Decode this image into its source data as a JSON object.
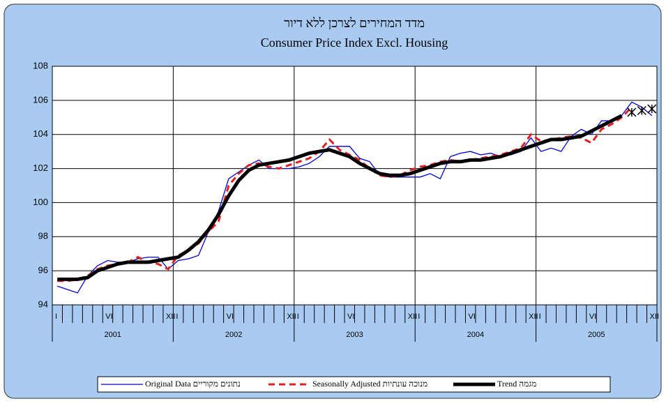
{
  "chart_data": {
    "type": "line",
    "title": "מדד המחירים לצרכן ללא דיור",
    "subtitle": "Consumer Price Index Excl. Housing",
    "categories": [
      "I",
      null,
      null,
      null,
      null,
      "VI",
      null,
      null,
      null,
      null,
      null,
      "XII",
      "I",
      null,
      null,
      null,
      null,
      "VI",
      null,
      null,
      null,
      null,
      null,
      "XII",
      "I",
      null,
      null,
      null,
      null,
      "VI",
      null,
      null,
      null,
      null,
      null,
      "XII",
      "I",
      null,
      null,
      null,
      null,
      "VI",
      null,
      null,
      null,
      null,
      null,
      "XII",
      "I",
      null,
      null,
      null,
      null,
      "VI",
      null,
      null,
      null,
      null,
      null,
      "XII"
    ],
    "years": [
      "2001",
      "2002",
      "2003",
      "2004",
      "2005"
    ],
    "ylim": [
      94,
      108
    ],
    "yticks": [
      94,
      96,
      98,
      100,
      102,
      104,
      106,
      108
    ],
    "grid": true,
    "series": [
      {
        "name": "Original Data נתונים מקוריים",
        "color": "#0000cc",
        "style": "solid",
        "values": [
          95.1,
          94.9,
          94.7,
          95.7,
          96.3,
          96.6,
          96.5,
          96.5,
          96.7,
          96.8,
          96.8,
          96.1,
          96.6,
          96.7,
          96.9,
          98.3,
          99.5,
          101.4,
          101.8,
          102.2,
          102.5,
          102.0,
          102.0,
          102.0,
          102.1,
          102.3,
          102.7,
          103.3,
          103.3,
          103.3,
          102.6,
          102.4,
          101.6,
          101.5,
          101.5,
          101.5,
          101.5,
          101.7,
          101.4,
          102.7,
          102.9,
          103.0,
          102.8,
          102.9,
          102.7,
          102.8,
          103.0,
          103.8,
          103.0,
          103.2,
          103.0,
          103.9,
          104.3,
          104.0,
          104.8,
          104.8,
          105.1,
          105.9,
          105.6,
          105.1
        ]
      },
      {
        "name": "Seasonally Adjusted מנוכה עונתיות",
        "color": "#e02020",
        "style": "dashed",
        "values": [
          95.4,
          95.4,
          95.5,
          95.7,
          96.1,
          96.3,
          96.4,
          96.5,
          96.8,
          96.5,
          96.4,
          96.1,
          96.9,
          97.2,
          97.6,
          98.3,
          98.9,
          101.0,
          101.7,
          102.2,
          102.3,
          102.1,
          102.0,
          102.2,
          102.4,
          102.6,
          103.0,
          103.7,
          103.1,
          102.8,
          102.5,
          102.0,
          101.6,
          101.5,
          101.6,
          101.9,
          102.1,
          102.2,
          102.4,
          102.5,
          102.4,
          102.5,
          102.6,
          102.7,
          102.8,
          103.0,
          103.2,
          104.0,
          103.6,
          103.7,
          103.8,
          103.9,
          103.8,
          103.5,
          104.3,
          104.6,
          105.0,
          105.6,
          null,
          null
        ]
      },
      {
        "name": "Trend מגמה",
        "color": "#000000",
        "style": "thick",
        "values": [
          95.5,
          95.5,
          95.5,
          95.6,
          96.0,
          96.2,
          96.4,
          96.5,
          96.5,
          96.5,
          96.6,
          96.7,
          96.8,
          97.2,
          97.7,
          98.4,
          99.3,
          100.4,
          101.3,
          101.9,
          102.2,
          102.3,
          102.4,
          102.5,
          102.7,
          102.9,
          103.0,
          103.1,
          102.9,
          102.7,
          102.3,
          102.0,
          101.7,
          101.6,
          101.6,
          101.7,
          101.9,
          102.1,
          102.3,
          102.4,
          102.4,
          102.5,
          102.5,
          102.6,
          102.7,
          102.9,
          103.1,
          103.3,
          103.5,
          103.7,
          103.7,
          103.8,
          103.9,
          104.2,
          104.5,
          104.8,
          105.1,
          null,
          null,
          null
        ]
      }
    ],
    "forecast": {
      "color": "#000000",
      "values": [
        null,
        null,
        null,
        null,
        null,
        null,
        null,
        null,
        null,
        null,
        null,
        null,
        null,
        null,
        null,
        null,
        null,
        null,
        null,
        null,
        null,
        null,
        null,
        null,
        null,
        null,
        null,
        null,
        null,
        null,
        null,
        null,
        null,
        null,
        null,
        null,
        null,
        null,
        null,
        null,
        null,
        null,
        null,
        null,
        null,
        null,
        null,
        null,
        null,
        null,
        null,
        null,
        null,
        null,
        null,
        null,
        null,
        105.3,
        105.4,
        105.5
      ]
    }
  }
}
